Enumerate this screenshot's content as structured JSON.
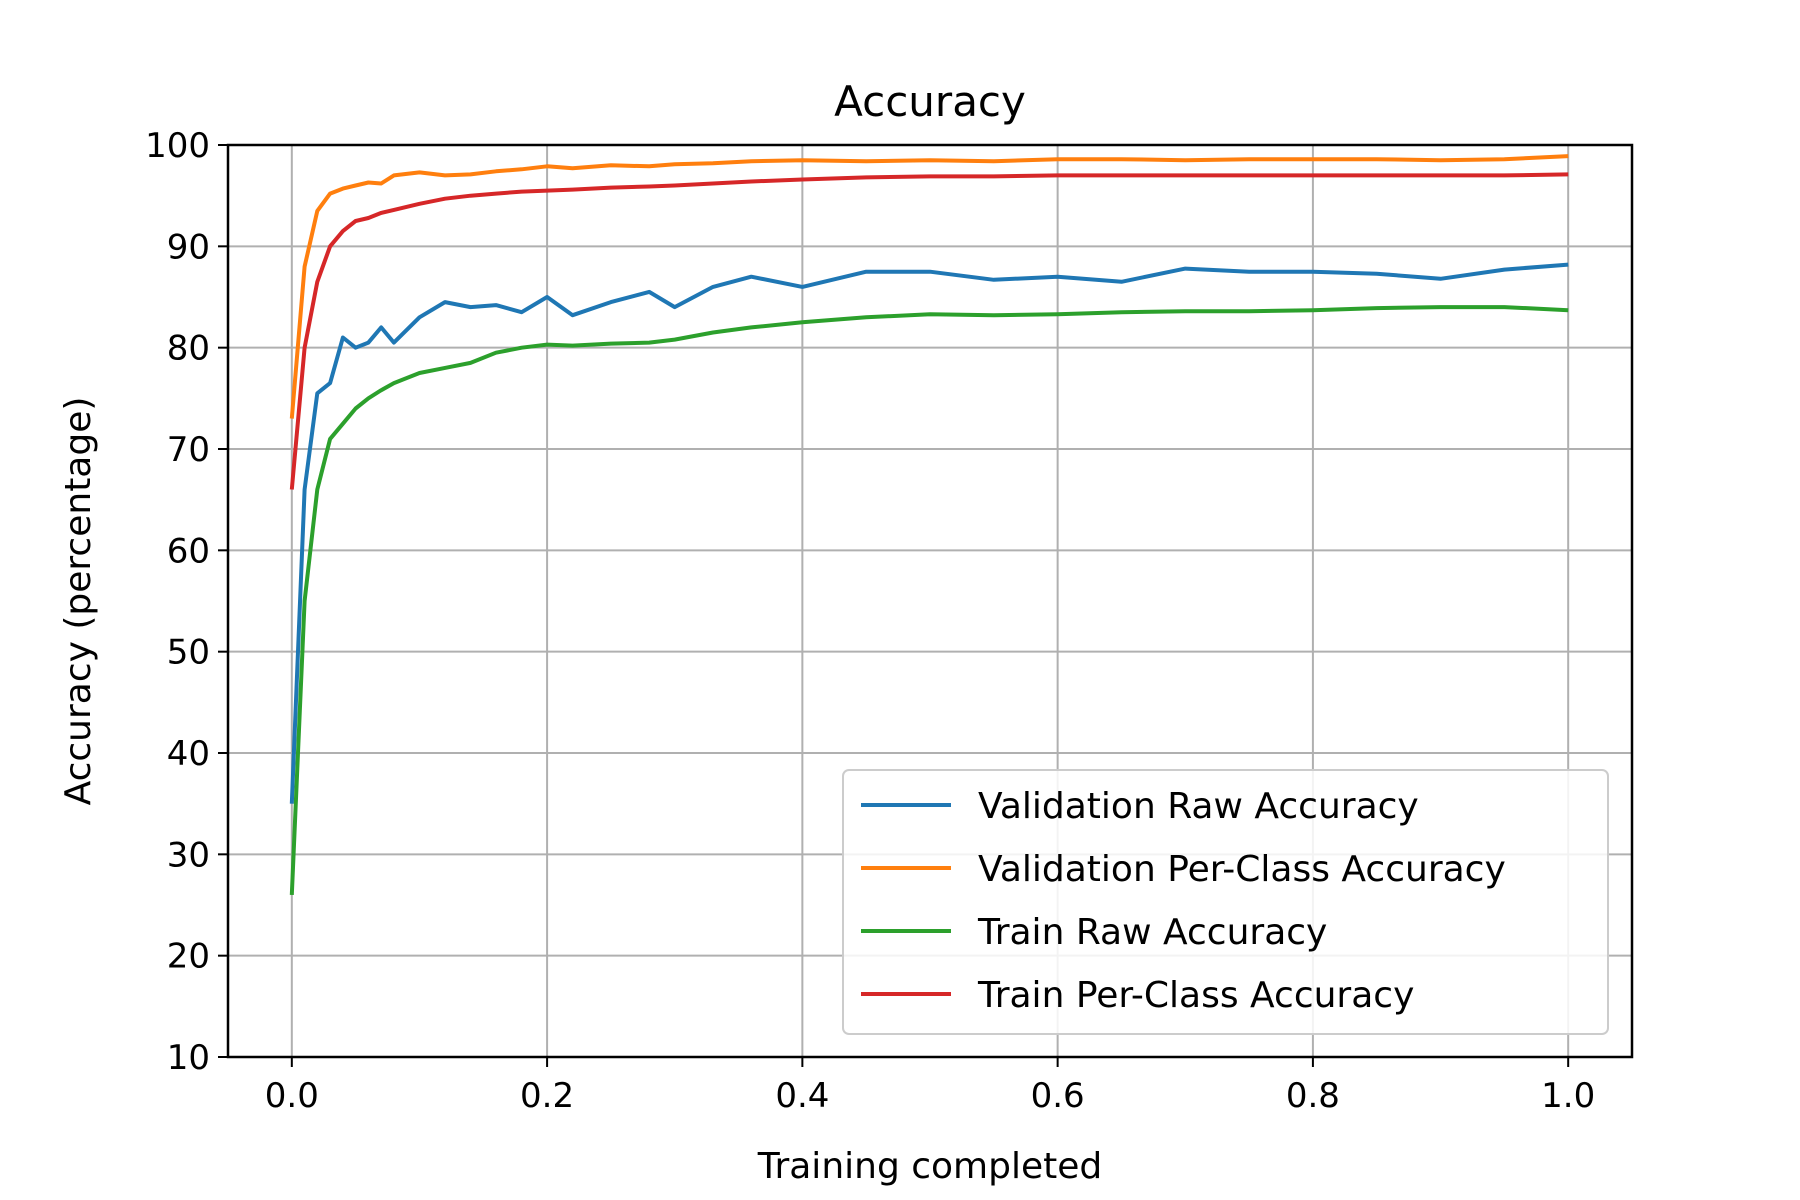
{
  "chart_data": {
    "type": "line",
    "title": "Accuracy",
    "xlabel": "Training completed",
    "ylabel": "Accuracy (percentage)",
    "xlim": [
      -0.05,
      1.05
    ],
    "ylim": [
      10,
      100
    ],
    "xticks": [
      0.0,
      0.2,
      0.4,
      0.6,
      0.8,
      1.0
    ],
    "xtick_labels": [
      "0.0",
      "0.2",
      "0.4",
      "0.6",
      "0.8",
      "1.0"
    ],
    "yticks": [
      10,
      20,
      30,
      40,
      50,
      60,
      70,
      80,
      90,
      100
    ],
    "ytick_labels": [
      "10",
      "20",
      "30",
      "40",
      "50",
      "60",
      "70",
      "80",
      "90",
      "100"
    ],
    "grid": true,
    "legend_position": "lower-right",
    "x": [
      0.0,
      0.01,
      0.02,
      0.03,
      0.04,
      0.05,
      0.06,
      0.07,
      0.08,
      0.1,
      0.12,
      0.14,
      0.16,
      0.18,
      0.2,
      0.22,
      0.25,
      0.28,
      0.3,
      0.33,
      0.36,
      0.4,
      0.45,
      0.5,
      0.55,
      0.6,
      0.65,
      0.7,
      0.75,
      0.8,
      0.85,
      0.9,
      0.95,
      1.0
    ],
    "series": [
      {
        "name": "Validation Raw Accuracy",
        "color": "#1f77b4",
        "values": [
          35,
          66,
          75.5,
          76.5,
          81,
          80,
          80.5,
          82,
          80.5,
          83,
          84.5,
          84,
          84.2,
          83.5,
          85,
          83.2,
          84.5,
          85.5,
          84,
          86,
          87,
          86,
          87.5,
          87.5,
          86.7,
          87,
          86.5,
          87.8,
          87.5,
          87.5,
          87.3,
          86.8,
          87.7,
          88.2
        ]
      },
      {
        "name": "Validation Per-Class Accuracy",
        "color": "#ff7f0e",
        "values": [
          73,
          88,
          93.5,
          95.2,
          95.7,
          96,
          96.3,
          96.2,
          97,
          97.3,
          97,
          97.1,
          97.4,
          97.6,
          97.9,
          97.7,
          98,
          97.9,
          98.1,
          98.2,
          98.4,
          98.5,
          98.4,
          98.5,
          98.4,
          98.6,
          98.6,
          98.5,
          98.6,
          98.6,
          98.6,
          98.5,
          98.6,
          98.9
        ]
      },
      {
        "name": "Train Raw Accuracy",
        "color": "#2ca02c",
        "values": [
          26,
          55,
          66,
          71,
          72.5,
          74,
          75,
          75.8,
          76.5,
          77.5,
          78,
          78.5,
          79.5,
          80,
          80.3,
          80.2,
          80.4,
          80.5,
          80.8,
          81.5,
          82,
          82.5,
          83,
          83.3,
          83.2,
          83.3,
          83.5,
          83.6,
          83.6,
          83.7,
          83.9,
          84,
          84,
          83.7
        ]
      },
      {
        "name": "Train Per-Class Accuracy",
        "color": "#d62728",
        "values": [
          66,
          80,
          86.5,
          90,
          91.5,
          92.5,
          92.8,
          93.3,
          93.6,
          94.2,
          94.7,
          95,
          95.2,
          95.4,
          95.5,
          95.6,
          95.8,
          95.9,
          96,
          96.2,
          96.4,
          96.6,
          96.8,
          96.9,
          96.9,
          97,
          97,
          97,
          97,
          97,
          97,
          97,
          97,
          97.1
        ]
      }
    ]
  }
}
